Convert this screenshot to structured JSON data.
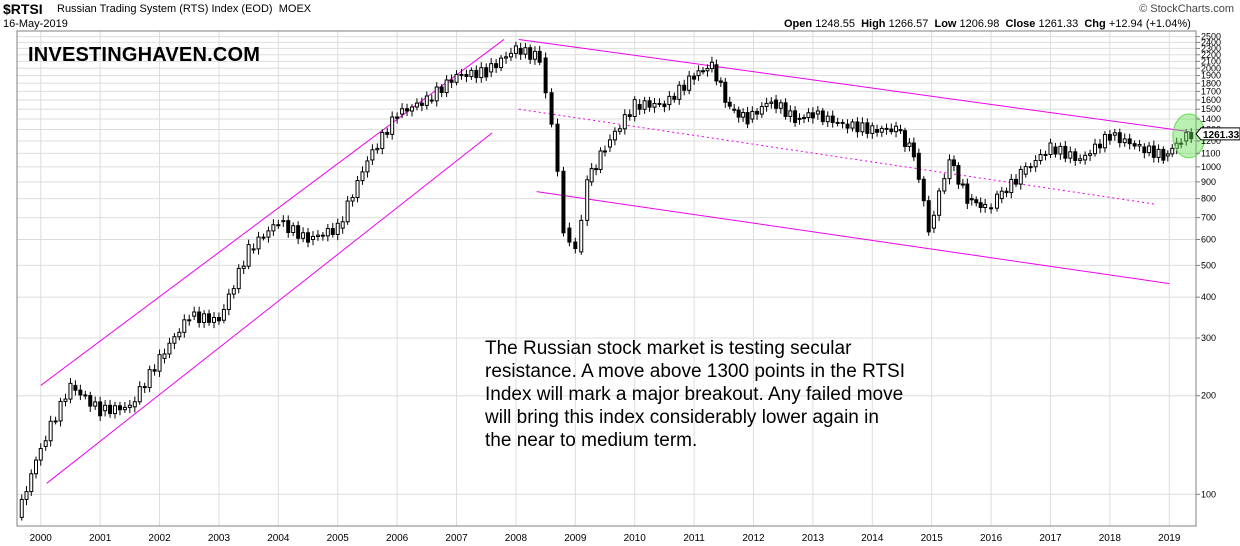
{
  "header": {
    "symbol": "$RTSI",
    "description": "Russian Trading System (RTS) Index (EOD)",
    "exchange": "MOEX",
    "date": "16-May-2019",
    "open_label": "Open",
    "open": "1248.55",
    "high_label": "High",
    "high": "1266.57",
    "low_label": "Low",
    "low": "1206.98",
    "close_label": "Close",
    "close": "1261.33",
    "chg_label": "Chg",
    "chg": "+12.94 (+1.04%)",
    "credit": "© StockCharts.com"
  },
  "watermark": "INVESTINGHAVEN.COM",
  "annotation": "The Russian stock market is testing secular resistance. A move above 1300 points in the RTSI Index will mark a major breakout. Any failed move will bring this index considerably lower again in the near to medium term.",
  "chart_data": {
    "type": "candlestick",
    "scale": "log",
    "ylim": [
      80,
      2600
    ],
    "xlim": [
      1999.6,
      2019.45
    ],
    "x_ticks": [
      "2000",
      "2001",
      "2002",
      "2003",
      "2004",
      "2005",
      "2006",
      "2007",
      "2008",
      "2009",
      "2010",
      "2011",
      "2012",
      "2013",
      "2014",
      "2015",
      "2016",
      "2017",
      "2018",
      "2019"
    ],
    "y_ticks": [
      100,
      200,
      300,
      400,
      500,
      600,
      700,
      800,
      900,
      1000,
      1100,
      1200,
      1300,
      1400,
      1500,
      1600,
      1700,
      1800,
      1900,
      2000,
      2100,
      2200,
      2300,
      2400,
      2500
    ],
    "last_value_label": "1261.33",
    "colors": {
      "candle": "#000000",
      "trendline": "#ee00ee",
      "highlight": "#66dd55",
      "grid": "#dddddd"
    },
    "series": [
      {
        "name": "",
        "x": [
          1999.6,
          2000.0,
          2000.5,
          2001.0,
          2001.5,
          2002.0,
          2002.5,
          2003.0,
          2003.5,
          2004.0,
          2004.5,
          2005.0,
          2005.5,
          2006.0,
          2006.5,
          2007.0,
          2007.5,
          2008.0,
          2008.4,
          2008.6,
          2008.8,
          2009.0,
          2009.2,
          2009.5,
          2010.0,
          2010.5,
          2011.0,
          2011.3,
          2011.6,
          2011.9,
          2012.3,
          2012.7,
          2013.0,
          2013.5,
          2014.0,
          2014.4,
          2014.7,
          2014.95,
          2015.3,
          2015.6,
          2015.9,
          2016.1,
          2016.5,
          2017.0,
          2017.5,
          2018.0,
          2018.5,
          2018.9,
          2019.2,
          2019.37
        ],
        "close": [
          85,
          140,
          215,
          180,
          185,
          260,
          350,
          340,
          560,
          680,
          600,
          650,
          1050,
          1450,
          1600,
          1900,
          1950,
          2300,
          2150,
          1350,
          650,
          550,
          900,
          1150,
          1550,
          1550,
          1900,
          2050,
          1500,
          1400,
          1600,
          1400,
          1450,
          1350,
          1300,
          1300,
          1100,
          650,
          1050,
          800,
          750,
          800,
          950,
          1150,
          1050,
          1250,
          1150,
          1080,
          1200,
          1261
        ]
      }
    ],
    "trendlines": [
      {
        "style": "solid",
        "x": [
          2000.0,
          2007.8
        ],
        "y": [
          215,
          2450
        ]
      },
      {
        "style": "solid",
        "x": [
          2000.1,
          2007.6
        ],
        "y": [
          108,
          1270
        ]
      },
      {
        "style": "solid",
        "x": [
          2008.05,
          2019.35
        ],
        "y": [
          2450,
          1280
        ]
      },
      {
        "style": "dotted",
        "x": [
          2008.05,
          2018.75
        ],
        "y": [
          1500,
          770
        ]
      },
      {
        "style": "solid",
        "x": [
          2008.35,
          2019.0
        ],
        "y": [
          840,
          440
        ]
      }
    ]
  }
}
